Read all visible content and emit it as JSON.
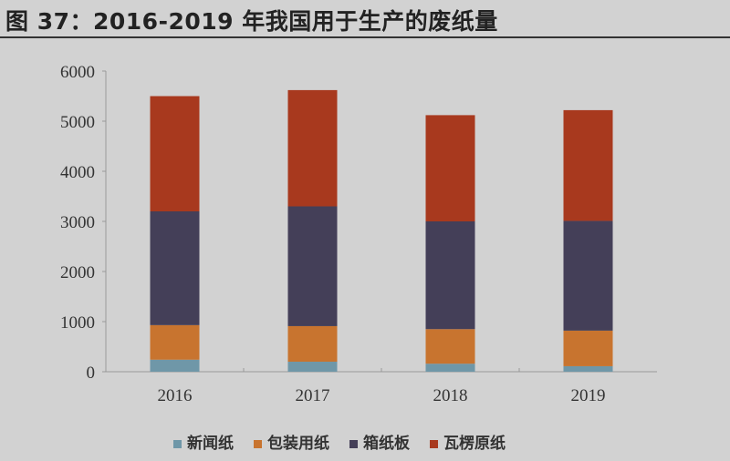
{
  "title": "图 37：2016-2019 年我国用于生产的废纸量",
  "chart_data": {
    "type": "bar",
    "stacked": true,
    "title": "图 37：2016-2019 年我国用于生产的废纸量",
    "xlabel": "",
    "ylabel": "",
    "ylim": [
      0,
      6000
    ],
    "yticks": [
      "0",
      "1000",
      "2000",
      "3000",
      "4000",
      "5000",
      "6000"
    ],
    "categories": [
      "2016",
      "2017",
      "2018",
      "2019"
    ],
    "series": [
      {
        "name": "新闻纸",
        "color": "#6f97a8",
        "values": [
          240,
          200,
          160,
          110
        ]
      },
      {
        "name": "包装用纸",
        "color": "#c8742f",
        "values": [
          690,
          710,
          690,
          710
        ]
      },
      {
        "name": "箱纸板",
        "color": "#443f58",
        "values": [
          2270,
          2390,
          2150,
          2190
        ]
      },
      {
        "name": "瓦楞原纸",
        "color": "#a8391e",
        "values": [
          2300,
          2320,
          2120,
          2210
        ]
      }
    ],
    "legend": "bottom",
    "grid": false
  }
}
